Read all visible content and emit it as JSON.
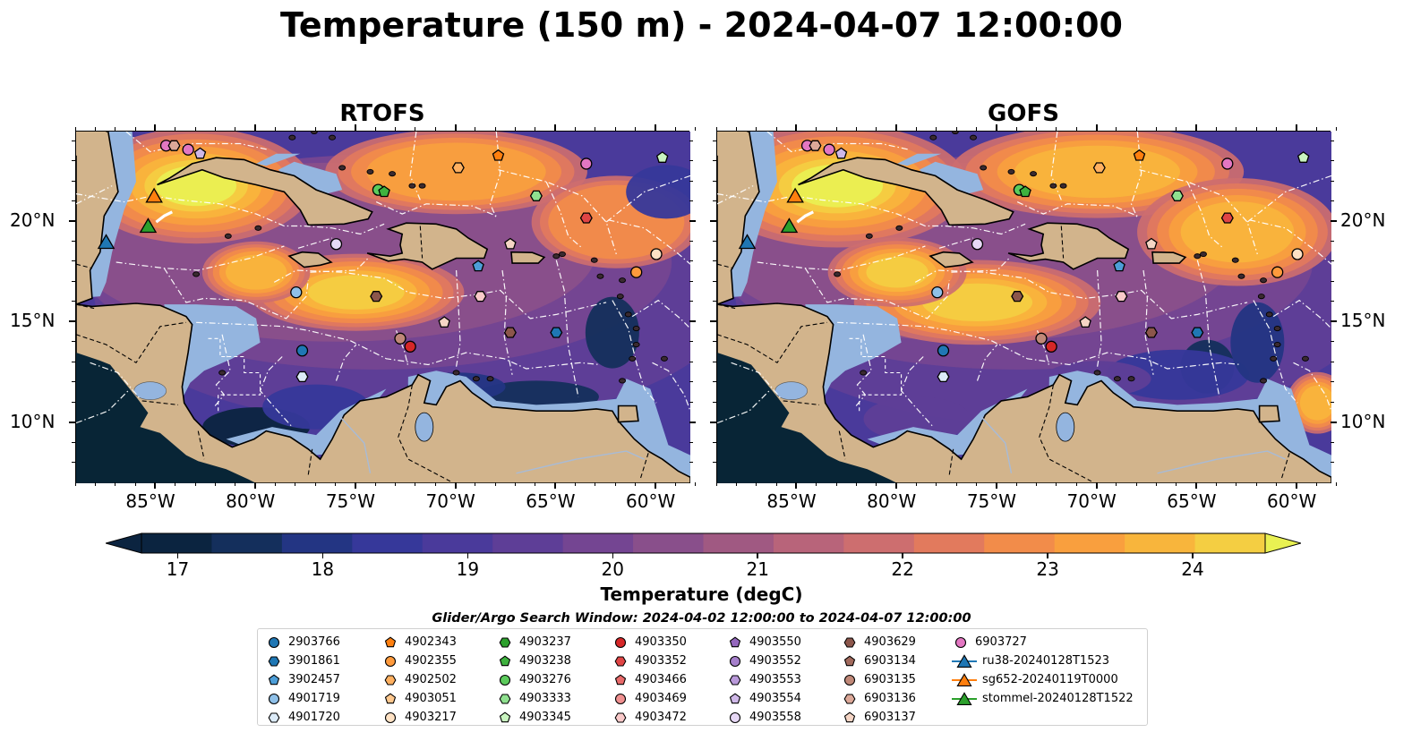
{
  "title": "Temperature (150 m) - 2024-04-07 12:00:00",
  "panels": [
    {
      "title": "RTOFS"
    },
    {
      "title": "GOFS"
    }
  ],
  "axes": {
    "x_ticks": [
      "85°W",
      "80°W",
      "75°W",
      "70°W",
      "65°W",
      "60°W"
    ],
    "x_values": [
      -85,
      -80,
      -75,
      -70,
      -65,
      -60
    ],
    "y_ticks": [
      "20°N",
      "15°N",
      "10°N"
    ],
    "y_values": [
      20,
      15,
      10
    ],
    "lon_range": [
      -89,
      -58.3
    ],
    "lat_range": [
      7,
      24.5
    ]
  },
  "colorbar": {
    "label": "Temperature (degC)",
    "ticks": [
      "17",
      "18",
      "19",
      "20",
      "21",
      "22",
      "23",
      "24"
    ],
    "tick_values": [
      17,
      18,
      19,
      20,
      21,
      22,
      23,
      24
    ],
    "range": [
      16.75,
      24.5
    ],
    "extend": "both",
    "colors": [
      "#0b2440",
      "#142f5c",
      "#233583",
      "#36389a",
      "#4a3a9b",
      "#5e3e97",
      "#744592",
      "#894f8b",
      "#a05982",
      "#b8647a",
      "#cd6e6f",
      "#e27a5d",
      "#f28c4a",
      "#f99f3e",
      "#f8b53c",
      "#f4ce42",
      "#e9f152"
    ]
  },
  "search_window": "Glider/Argo Search Window: 2024-04-02 12:00:00 to 2024-04-07 12:00:00",
  "colors": {
    "land": "#d2b48c",
    "shallow_water": "#94b5df",
    "deep_land_shadow": "#082536",
    "eez_lines": "#ffffff"
  },
  "legend": [
    {
      "label": "2903766",
      "marker": "circle",
      "color": "#1f77b4"
    },
    {
      "label": "3901861",
      "marker": "hexagon",
      "color": "#1f77b4"
    },
    {
      "label": "3902457",
      "marker": "pentagon",
      "color": "#4d9ed8"
    },
    {
      "label": "4901719",
      "marker": "circle",
      "color": "#8fc0e8"
    },
    {
      "label": "4901720",
      "marker": "hexagon",
      "color": "#dcebf8"
    },
    {
      "label": "4902343",
      "marker": "pentagon",
      "color": "#ff7f0e"
    },
    {
      "label": "4902355",
      "marker": "circle",
      "color": "#ff9a3c"
    },
    {
      "label": "4902502",
      "marker": "hexagon",
      "color": "#ffb060"
    },
    {
      "label": "4903051",
      "marker": "pentagon",
      "color": "#ffc88e"
    },
    {
      "label": "4903217",
      "marker": "circle",
      "color": "#ffe2c4"
    },
    {
      "label": "4903237",
      "marker": "hexagon",
      "color": "#2ca02c"
    },
    {
      "label": "4903238",
      "marker": "pentagon",
      "color": "#3fb23f"
    },
    {
      "label": "4903276",
      "marker": "circle",
      "color": "#5ccb5c"
    },
    {
      "label": "4903333",
      "marker": "hexagon",
      "color": "#8fe08f"
    },
    {
      "label": "4903345",
      "marker": "pentagon",
      "color": "#c9f4c0"
    },
    {
      "label": "4903350",
      "marker": "circle",
      "color": "#d62728"
    },
    {
      "label": "4903352",
      "marker": "hexagon",
      "color": "#e04545"
    },
    {
      "label": "4903466",
      "marker": "pentagon",
      "color": "#e86a6a"
    },
    {
      "label": "4903469",
      "marker": "circle",
      "color": "#f09090"
    },
    {
      "label": "4903472",
      "marker": "hexagon",
      "color": "#f9c9c9"
    },
    {
      "label": "4903550",
      "marker": "pentagon",
      "color": "#9467bd"
    },
    {
      "label": "4903552",
      "marker": "circle",
      "color": "#a57fcb"
    },
    {
      "label": "4903553",
      "marker": "hexagon",
      "color": "#b999da"
    },
    {
      "label": "4903554",
      "marker": "pentagon",
      "color": "#cfb8e8"
    },
    {
      "label": "4903558",
      "marker": "circle",
      "color": "#e7d8f6"
    },
    {
      "label": "4903629",
      "marker": "hexagon",
      "color": "#8c564b"
    },
    {
      "label": "6903134",
      "marker": "pentagon",
      "color": "#a26a5d"
    },
    {
      "label": "6903135",
      "marker": "circle",
      "color": "#c08878"
    },
    {
      "label": "6903136",
      "marker": "hexagon",
      "color": "#dca898"
    },
    {
      "label": "6903137",
      "marker": "pentagon",
      "color": "#f5d5c5"
    },
    {
      "label": "6903727",
      "marker": "circle",
      "color": "#e377c2"
    },
    {
      "label": "ru38-20240128T1523",
      "marker": "triangle",
      "color": "#1f77b4",
      "line": true
    },
    {
      "label": "sg652-20240119T0000",
      "marker": "triangle",
      "color": "#ff7f0e",
      "line": true
    },
    {
      "label": "stommel-20240128T1522",
      "marker": "triangle",
      "color": "#2ca02c",
      "line": true
    }
  ],
  "floats": [
    {
      "id": "6903727",
      "lon": -84.5,
      "lat": 23.8
    },
    {
      "id": "6903136",
      "lon": -84.1,
      "lat": 23.8
    },
    {
      "id": "6903727",
      "lon": -83.4,
      "lat": 23.6
    },
    {
      "id": "4903554",
      "lon": -82.8,
      "lat": 23.4
    },
    {
      "id": "sg652-20240119T0000",
      "lon": -85.1,
      "lat": 21.3
    },
    {
      "id": "stommel-20240128T1522",
      "lon": -85.4,
      "lat": 19.8
    },
    {
      "id": "ru38-20240128T1523",
      "lon": -87.5,
      "lat": 19.0
    },
    {
      "id": "4903276",
      "lon": -73.9,
      "lat": 21.6
    },
    {
      "id": "4903238",
      "lon": -73.6,
      "lat": 21.5
    },
    {
      "id": "4902502",
      "lon": -69.9,
      "lat": 22.7
    },
    {
      "id": "4902343",
      "lon": -67.9,
      "lat": 23.3
    },
    {
      "id": "6903727",
      "lon": -63.5,
      "lat": 22.9
    },
    {
      "id": "4903345",
      "lon": -59.7,
      "lat": 23.2
    },
    {
      "id": "4903333",
      "lon": -66.0,
      "lat": 21.3
    },
    {
      "id": "4903352",
      "lon": -63.5,
      "lat": 20.2
    },
    {
      "id": "4903558",
      "lon": -76.0,
      "lat": 18.9
    },
    {
      "id": "6903137",
      "lon": -67.3,
      "lat": 18.9
    },
    {
      "id": "4903217",
      "lon": -60.0,
      "lat": 18.4
    },
    {
      "id": "4902355",
      "lon": -61.0,
      "lat": 17.5
    },
    {
      "id": "3902457",
      "lon": -68.9,
      "lat": 17.8
    },
    {
      "id": "4901719",
      "lon": -78.0,
      "lat": 16.5
    },
    {
      "id": "4903629",
      "lon": -74.0,
      "lat": 16.3
    },
    {
      "id": "4903472",
      "lon": -68.8,
      "lat": 16.3
    },
    {
      "id": "6903137",
      "lon": -70.6,
      "lat": 15.0
    },
    {
      "id": "2903766",
      "lon": -77.7,
      "lat": 13.6
    },
    {
      "id": "6903135",
      "lon": -72.8,
      "lat": 14.2
    },
    {
      "id": "4903350",
      "lon": -72.3,
      "lat": 13.8
    },
    {
      "id": "4903629",
      "lon": -67.3,
      "lat": 14.5
    },
    {
      "id": "3901861",
      "lon": -65.0,
      "lat": 14.5
    },
    {
      "id": "4901720",
      "lon": -77.7,
      "lat": 12.3
    }
  ]
}
